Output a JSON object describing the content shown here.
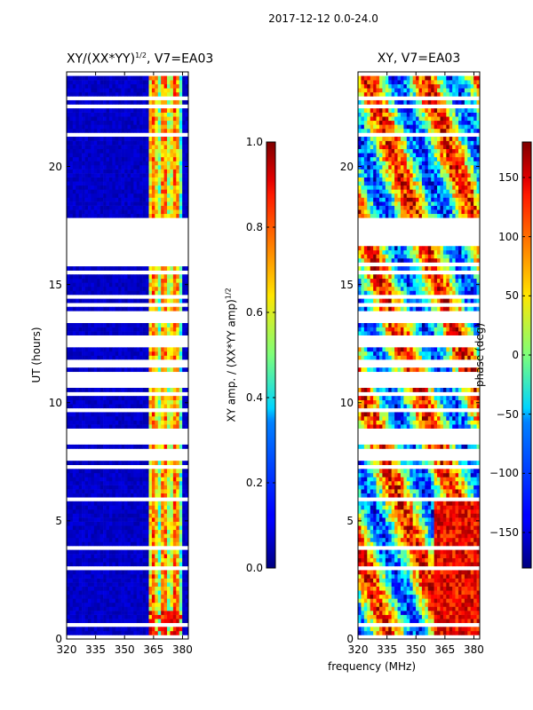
{
  "header": {
    "suptitle": "2017-12-12 0.0-24.0"
  },
  "chart_data": [
    {
      "type": "heatmap",
      "title": "XY/(XX*YY)1/2, V7=EA03",
      "title_parts": {
        "main": "XY/(XX*YY)",
        "sup": "1/2",
        "tail": ", V7=EA03"
      },
      "xlabel": "",
      "ylabel": "UT (hours)",
      "xlim": [
        320,
        383
      ],
      "ylim": [
        0,
        24
      ],
      "xticks": [
        "320",
        "335",
        "350",
        "365",
        "380"
      ],
      "yticks": [
        "0",
        "5",
        "10",
        "15",
        "20"
      ],
      "colorbar": {
        "label": "XY amp. / (XX*YY amp)1/2",
        "label_parts": {
          "main": "XY amp. / (XX*YY amp)",
          "sup": "1/2"
        },
        "range": [
          0.0,
          1.0
        ],
        "ticks": [
          "0.0",
          "0.2",
          "0.4",
          "0.6",
          "0.8",
          "1.0"
        ],
        "colormap": "jet"
      },
      "data_gaps_hours": [
        [
          15.8,
          16.6
        ],
        [
          16.7,
          17.8
        ]
      ],
      "high_amplitude_band_MHz": [
        362,
        380
      ]
    },
    {
      "type": "heatmap",
      "title": "XY, V7=EA03",
      "xlabel": "",
      "ylabel": "",
      "xlim": [
        320,
        383
      ],
      "ylim": [
        0,
        24
      ],
      "xticks": [
        "320",
        "335",
        "350",
        "365",
        "380"
      ],
      "yticks": [
        "0",
        "5",
        "10",
        "15",
        "20"
      ],
      "colorbar": {
        "label": "phase (deg)",
        "range": [
          -180,
          180
        ],
        "ticks": [
          "-150",
          "-100",
          "-50",
          "0",
          "50",
          "100",
          "150"
        ],
        "colormap": "jet"
      },
      "data_gaps_hours": [
        [
          16.7,
          17.8
        ]
      ]
    }
  ],
  "shared_xlabel": "frequency (MHz)"
}
